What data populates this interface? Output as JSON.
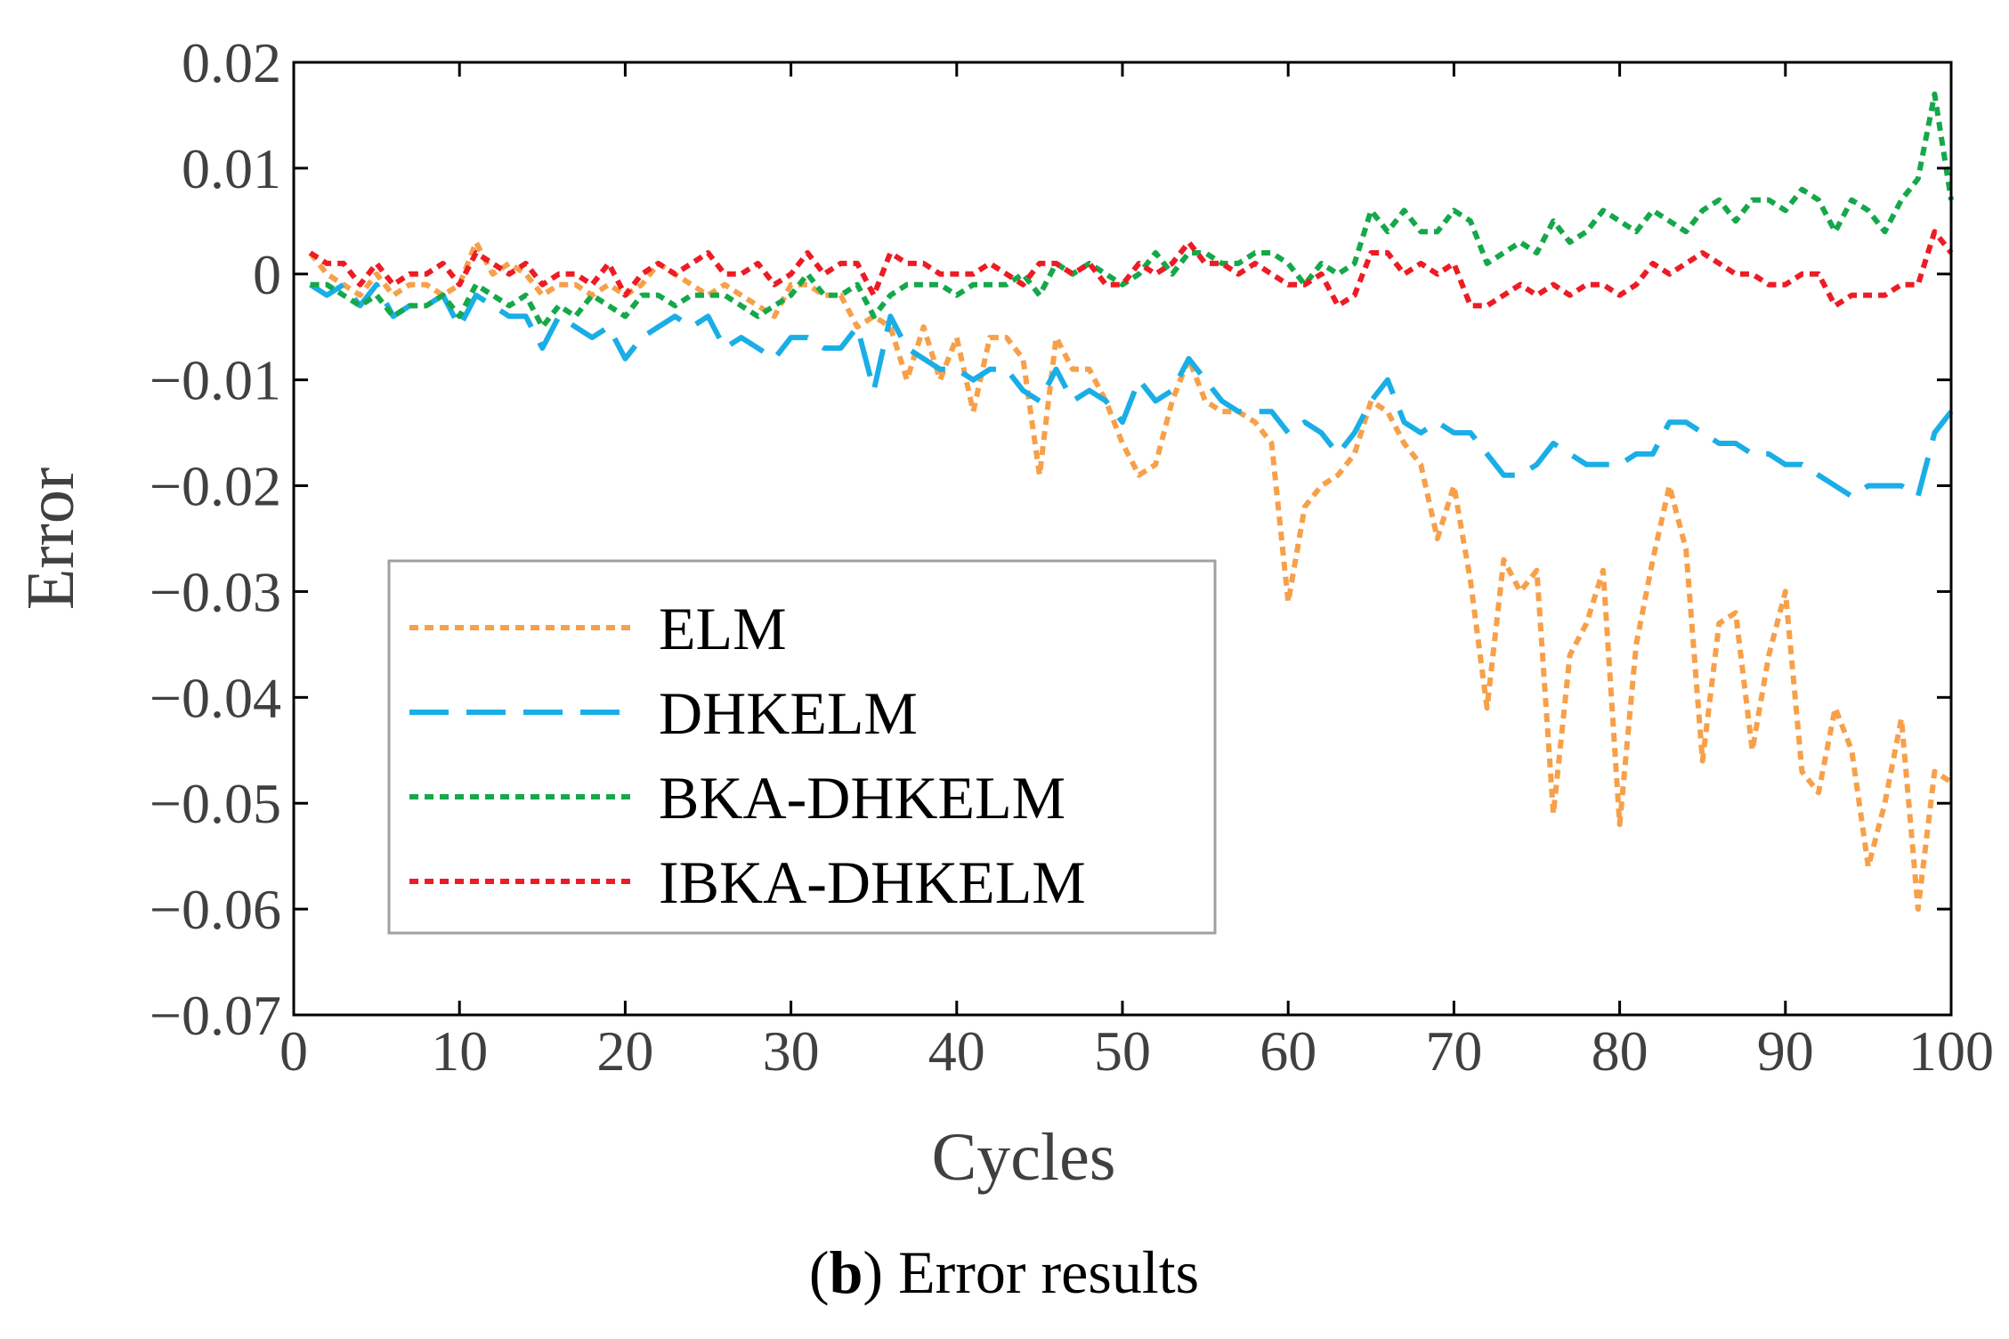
{
  "chart_data": {
    "type": "line",
    "title": "",
    "xlabel": "Cycles",
    "ylabel": "Error",
    "xlim": [
      0,
      100
    ],
    "ylim": [
      -0.07,
      0.02
    ],
    "xticks": [
      0,
      10,
      20,
      30,
      40,
      50,
      60,
      70,
      80,
      90,
      100
    ],
    "xtick_labels": [
      "0",
      "10",
      "20",
      "30",
      "40",
      "50",
      "60",
      "70",
      "80",
      "90",
      "100"
    ],
    "yticks": [
      0.02,
      0.01,
      0,
      -0.01,
      -0.02,
      -0.03,
      -0.04,
      -0.05,
      -0.06,
      -0.07
    ],
    "ytick_labels": [
      "0.02",
      "0.01",
      "0",
      "−0.01",
      "−0.02",
      "−0.03",
      "−0.04",
      "−0.05",
      "−0.06",
      "−0.07"
    ],
    "grid": false,
    "legend_position": "center-left",
    "series": [
      {
        "name": "ELM",
        "color": "#f7a04a",
        "style": "dotted",
        "x": [
          1,
          2,
          3,
          4,
          5,
          6,
          7,
          8,
          9,
          10,
          11,
          12,
          13,
          14,
          15,
          16,
          17,
          18,
          19,
          20,
          21,
          22,
          23,
          24,
          25,
          26,
          27,
          28,
          29,
          30,
          31,
          32,
          33,
          34,
          35,
          36,
          37,
          38,
          39,
          40,
          41,
          42,
          43,
          44,
          45,
          46,
          47,
          48,
          49,
          50,
          51,
          52,
          53,
          54,
          55,
          56,
          57,
          58,
          59,
          60,
          61,
          62,
          63,
          64,
          65,
          66,
          67,
          68,
          69,
          70,
          71,
          72,
          73,
          74,
          75,
          76,
          77,
          78,
          79,
          80,
          81,
          82,
          83,
          84,
          85,
          86,
          87,
          88,
          89,
          90,
          91,
          92,
          93,
          94,
          95,
          96,
          97,
          98,
          99,
          100
        ],
        "values": [
          0.002,
          0.0,
          -0.001,
          -0.002,
          0.0,
          -0.002,
          -0.001,
          -0.001,
          -0.002,
          -0.001,
          0.003,
          0.0,
          0.001,
          0.0,
          -0.002,
          -0.001,
          -0.001,
          -0.002,
          -0.001,
          -0.002,
          -0.001,
          0.001,
          0.0,
          -0.001,
          -0.002,
          -0.001,
          -0.002,
          -0.003,
          -0.004,
          -0.001,
          -0.001,
          -0.002,
          -0.002,
          -0.005,
          -0.004,
          -0.005,
          -0.01,
          -0.005,
          -0.01,
          -0.006,
          -0.013,
          -0.006,
          -0.006,
          -0.008,
          -0.019,
          -0.006,
          -0.009,
          -0.009,
          -0.012,
          -0.016,
          -0.019,
          -0.018,
          -0.012,
          -0.008,
          -0.012,
          -0.013,
          -0.013,
          -0.014,
          -0.016,
          -0.031,
          -0.022,
          -0.02,
          -0.019,
          -0.017,
          -0.012,
          -0.013,
          -0.016,
          -0.018,
          -0.025,
          -0.02,
          -0.029,
          -0.041,
          -0.027,
          -0.03,
          -0.028,
          -0.051,
          -0.036,
          -0.033,
          -0.028,
          -0.052,
          -0.035,
          -0.027,
          -0.02,
          -0.026,
          -0.046,
          -0.033,
          -0.032,
          -0.045,
          -0.036,
          -0.03,
          -0.047,
          -0.049,
          -0.041,
          -0.045,
          -0.056,
          -0.05,
          -0.042,
          -0.06,
          -0.047,
          -0.048
        ]
      },
      {
        "name": "DHKELM",
        "color": "#1aaee6",
        "style": "dashed",
        "x": [
          1,
          2,
          3,
          4,
          5,
          6,
          7,
          8,
          9,
          10,
          11,
          12,
          13,
          14,
          15,
          16,
          17,
          18,
          19,
          20,
          21,
          22,
          23,
          24,
          25,
          26,
          27,
          28,
          29,
          30,
          31,
          32,
          33,
          34,
          35,
          36,
          37,
          38,
          39,
          40,
          41,
          42,
          43,
          44,
          45,
          46,
          47,
          48,
          49,
          50,
          51,
          52,
          53,
          54,
          55,
          56,
          57,
          58,
          59,
          60,
          61,
          62,
          63,
          64,
          65,
          66,
          67,
          68,
          69,
          70,
          71,
          72,
          73,
          74,
          75,
          76,
          77,
          78,
          79,
          80,
          81,
          82,
          83,
          84,
          85,
          86,
          87,
          88,
          89,
          90,
          91,
          92,
          93,
          94,
          95,
          96,
          97,
          98,
          99,
          100
        ],
        "values": [
          -0.001,
          -0.002,
          -0.001,
          -0.003,
          -0.001,
          -0.004,
          -0.003,
          -0.003,
          -0.002,
          -0.005,
          -0.002,
          -0.003,
          -0.004,
          -0.004,
          -0.007,
          -0.004,
          -0.005,
          -0.006,
          -0.005,
          -0.008,
          -0.006,
          -0.005,
          -0.004,
          -0.005,
          -0.004,
          -0.007,
          -0.006,
          -0.007,
          -0.008,
          -0.006,
          -0.006,
          -0.007,
          -0.007,
          -0.005,
          -0.011,
          -0.004,
          -0.007,
          -0.008,
          -0.009,
          -0.009,
          -0.01,
          -0.009,
          -0.009,
          -0.011,
          -0.012,
          -0.009,
          -0.012,
          -0.011,
          -0.012,
          -0.014,
          -0.01,
          -0.012,
          -0.011,
          -0.008,
          -0.01,
          -0.012,
          -0.013,
          -0.013,
          -0.013,
          -0.015,
          -0.014,
          -0.015,
          -0.017,
          -0.015,
          -0.012,
          -0.01,
          -0.014,
          -0.015,
          -0.014,
          -0.015,
          -0.015,
          -0.017,
          -0.019,
          -0.019,
          -0.018,
          -0.016,
          -0.017,
          -0.018,
          -0.018,
          -0.018,
          -0.017,
          -0.017,
          -0.014,
          -0.014,
          -0.015,
          -0.016,
          -0.016,
          -0.017,
          -0.017,
          -0.018,
          -0.018,
          -0.019,
          -0.02,
          -0.021,
          -0.02,
          -0.02,
          -0.02,
          -0.021,
          -0.015,
          -0.013
        ]
      },
      {
        "name": "BKA-DHKELM",
        "color": "#15a84a",
        "style": "dotted",
        "x": [
          1,
          2,
          3,
          4,
          5,
          6,
          7,
          8,
          9,
          10,
          11,
          12,
          13,
          14,
          15,
          16,
          17,
          18,
          19,
          20,
          21,
          22,
          23,
          24,
          25,
          26,
          27,
          28,
          29,
          30,
          31,
          32,
          33,
          34,
          35,
          36,
          37,
          38,
          39,
          40,
          41,
          42,
          43,
          44,
          45,
          46,
          47,
          48,
          49,
          50,
          51,
          52,
          53,
          54,
          55,
          56,
          57,
          58,
          59,
          60,
          61,
          62,
          63,
          64,
          65,
          66,
          67,
          68,
          69,
          70,
          71,
          72,
          73,
          74,
          75,
          76,
          77,
          78,
          79,
          80,
          81,
          82,
          83,
          84,
          85,
          86,
          87,
          88,
          89,
          90,
          91,
          92,
          93,
          94,
          95,
          96,
          97,
          98,
          99,
          100
        ],
        "values": [
          -0.001,
          -0.001,
          -0.002,
          -0.003,
          -0.002,
          -0.004,
          -0.003,
          -0.003,
          -0.002,
          -0.004,
          -0.001,
          -0.002,
          -0.003,
          -0.002,
          -0.005,
          -0.003,
          -0.004,
          -0.002,
          -0.003,
          -0.004,
          -0.002,
          -0.002,
          -0.003,
          -0.002,
          -0.002,
          -0.002,
          -0.003,
          -0.004,
          -0.003,
          -0.002,
          0.0,
          -0.002,
          -0.002,
          -0.001,
          -0.004,
          -0.002,
          -0.001,
          -0.001,
          -0.001,
          -0.002,
          -0.001,
          -0.001,
          -0.001,
          0.0,
          -0.002,
          0.001,
          0.0,
          0.001,
          0.0,
          -0.001,
          0.0,
          0.002,
          0.0,
          0.002,
          0.002,
          0.001,
          0.001,
          0.002,
          0.002,
          0.001,
          -0.001,
          0.001,
          0.0,
          0.001,
          0.006,
          0.004,
          0.006,
          0.004,
          0.004,
          0.006,
          0.005,
          0.001,
          0.002,
          0.003,
          0.002,
          0.005,
          0.003,
          0.004,
          0.006,
          0.005,
          0.004,
          0.006,
          0.005,
          0.004,
          0.006,
          0.007,
          0.005,
          0.007,
          0.007,
          0.006,
          0.008,
          0.007,
          0.004,
          0.007,
          0.006,
          0.004,
          0.007,
          0.009,
          0.017,
          0.007
        ]
      },
      {
        "name": "IBKA-DHKELM",
        "color": "#ed1c24",
        "style": "dotted",
        "x": [
          1,
          2,
          3,
          4,
          5,
          6,
          7,
          8,
          9,
          10,
          11,
          12,
          13,
          14,
          15,
          16,
          17,
          18,
          19,
          20,
          21,
          22,
          23,
          24,
          25,
          26,
          27,
          28,
          29,
          30,
          31,
          32,
          33,
          34,
          35,
          36,
          37,
          38,
          39,
          40,
          41,
          42,
          43,
          44,
          45,
          46,
          47,
          48,
          49,
          50,
          51,
          52,
          53,
          54,
          55,
          56,
          57,
          58,
          59,
          60,
          61,
          62,
          63,
          64,
          65,
          66,
          67,
          68,
          69,
          70,
          71,
          72,
          73,
          74,
          75,
          76,
          77,
          78,
          79,
          80,
          81,
          82,
          83,
          84,
          85,
          86,
          87,
          88,
          89,
          90,
          91,
          92,
          93,
          94,
          95,
          96,
          97,
          98,
          99,
          100
        ],
        "values": [
          0.002,
          0.001,
          0.001,
          -0.001,
          0.001,
          -0.001,
          0.0,
          0.0,
          0.001,
          -0.001,
          0.002,
          0.001,
          0.0,
          0.001,
          -0.001,
          0.0,
          0.0,
          -0.001,
          0.001,
          -0.002,
          0.0,
          0.001,
          0.0,
          0.001,
          0.002,
          0.0,
          0.0,
          0.001,
          -0.001,
          0.0,
          0.002,
          0.0,
          0.001,
          0.001,
          -0.002,
          0.002,
          0.001,
          0.001,
          0.0,
          0.0,
          0.0,
          0.001,
          0.0,
          -0.001,
          0.001,
          0.001,
          0.0,
          0.001,
          -0.001,
          -0.001,
          0.001,
          0.0,
          0.001,
          0.003,
          0.001,
          0.001,
          0.0,
          0.001,
          0.0,
          -0.001,
          -0.001,
          0.0,
          -0.003,
          -0.002,
          0.002,
          0.002,
          0.0,
          0.001,
          0.0,
          0.001,
          -0.003,
          -0.003,
          -0.002,
          -0.001,
          -0.002,
          -0.001,
          -0.002,
          -0.001,
          -0.001,
          -0.002,
          -0.001,
          0.001,
          0.0,
          0.001,
          0.002,
          0.001,
          0.0,
          0.0,
          -0.001,
          -0.001,
          0.0,
          0.0,
          -0.003,
          -0.002,
          -0.002,
          -0.002,
          -0.001,
          -0.001,
          0.004,
          0.002
        ]
      }
    ]
  },
  "caption": {
    "label": "b",
    "text": "Error results"
  }
}
